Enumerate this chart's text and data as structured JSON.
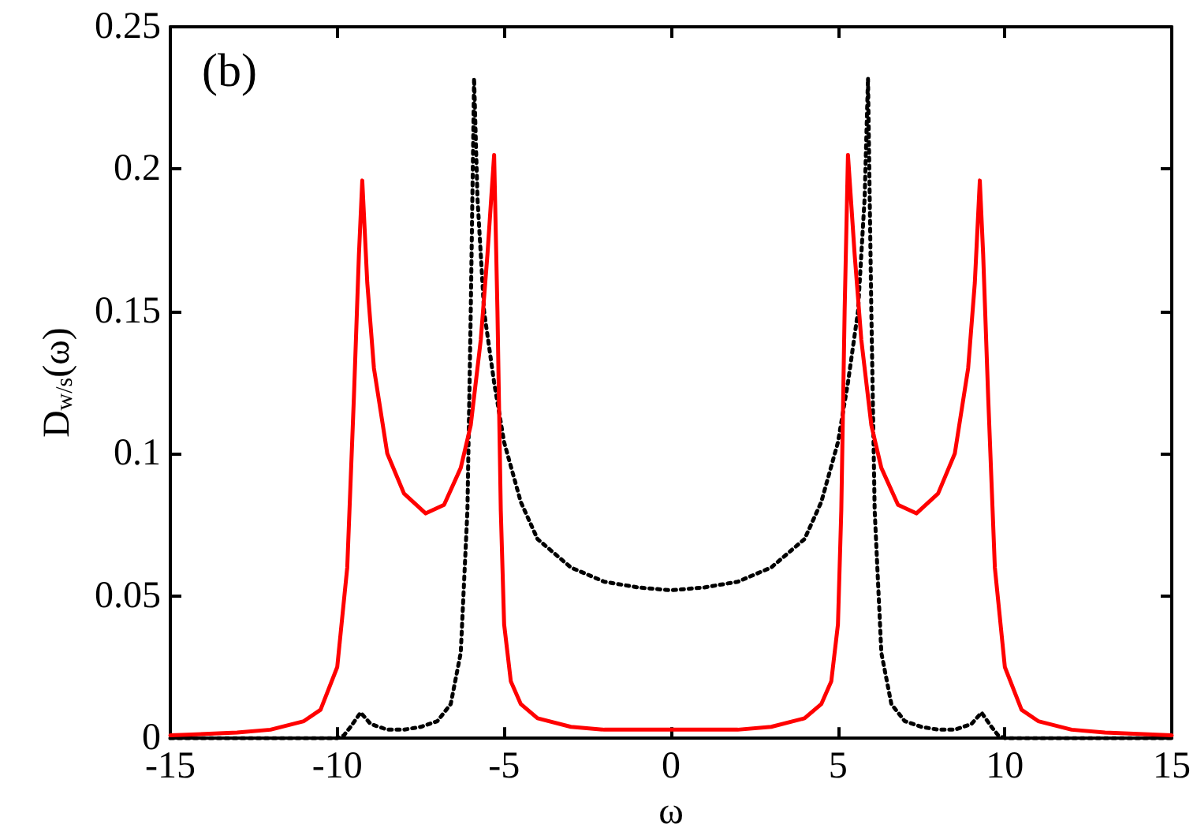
{
  "chart_data": {
    "type": "line",
    "xlabel": "ω",
    "ylabel": "D$_{w/s}$(ω)",
    "annotations": [
      "(b)"
    ],
    "xlim": [
      -15,
      15
    ],
    "xticks": [
      -15,
      -10,
      -5,
      0,
      5,
      10,
      15
    ],
    "ylim": [
      0,
      0.25
    ],
    "yticks": [
      0,
      0.05,
      0.1,
      0.15,
      0.2,
      0.25
    ],
    "grid": false,
    "marker": "none",
    "series": [
      {
        "color": "#ff0000",
        "line_style": "solid",
        "x": [
          -15,
          -13,
          -12,
          -11,
          -10.5,
          -10,
          -9.7,
          -9.5,
          -9.35,
          -9.25,
          -9.1,
          -8.9,
          -8.5,
          -8,
          -7.35,
          -6.8,
          -6.3,
          -6,
          -5.7,
          -5.5,
          -5.3,
          -5.2,
          -5.1,
          -5,
          -4.8,
          -4.5,
          -4,
          -3,
          -2,
          0,
          2,
          3,
          4,
          4.5,
          4.8,
          5,
          5.1,
          5.2,
          5.3,
          5.5,
          5.7,
          6,
          6.3,
          6.8,
          7.35,
          8,
          8.5,
          8.9,
          9.1,
          9.25,
          9.35,
          9.5,
          9.7,
          10,
          10.5,
          11,
          12,
          13,
          15
        ],
        "values": [
          0.001,
          0.002,
          0.003,
          0.006,
          0.01,
          0.025,
          0.06,
          0.12,
          0.17,
          0.196,
          0.16,
          0.13,
          0.1,
          0.086,
          0.079,
          0.082,
          0.095,
          0.11,
          0.14,
          0.17,
          0.205,
          0.15,
          0.08,
          0.04,
          0.02,
          0.012,
          0.007,
          0.004,
          0.003,
          0.003,
          0.003,
          0.004,
          0.007,
          0.012,
          0.02,
          0.04,
          0.08,
          0.15,
          0.205,
          0.17,
          0.14,
          0.11,
          0.095,
          0.082,
          0.079,
          0.086,
          0.1,
          0.13,
          0.16,
          0.196,
          0.17,
          0.12,
          0.06,
          0.025,
          0.01,
          0.006,
          0.003,
          0.002,
          0.001
        ]
      },
      {
        "color": "#000000",
        "line_style": "dotted",
        "x": [
          -15,
          -12,
          -10,
          -9.8,
          -9.6,
          -9.3,
          -9,
          -8.5,
          -8,
          -7.5,
          -7,
          -6.6,
          -6.3,
          -6.1,
          -6,
          -5.9,
          -5.8,
          -5.6,
          -5.3,
          -5,
          -4.5,
          -4,
          -3,
          -2,
          -1,
          0,
          1,
          2,
          3,
          4,
          4.5,
          5,
          5.3,
          5.6,
          5.8,
          5.9,
          6,
          6.1,
          6.3,
          6.6,
          7,
          7.5,
          8,
          8.5,
          9,
          9.3,
          9.6,
          9.8,
          10,
          12,
          15
        ],
        "values": [
          0,
          0,
          0,
          0.001,
          0.004,
          0.009,
          0.005,
          0.003,
          0.003,
          0.004,
          0.006,
          0.012,
          0.03,
          0.08,
          0.15,
          0.232,
          0.19,
          0.15,
          0.125,
          0.104,
          0.083,
          0.07,
          0.06,
          0.055,
          0.053,
          0.052,
          0.053,
          0.055,
          0.06,
          0.07,
          0.083,
          0.104,
          0.125,
          0.15,
          0.19,
          0.232,
          0.15,
          0.08,
          0.03,
          0.012,
          0.006,
          0.004,
          0.003,
          0.003,
          0.005,
          0.009,
          0.004,
          0.001,
          0,
          0,
          0
        ]
      }
    ]
  }
}
